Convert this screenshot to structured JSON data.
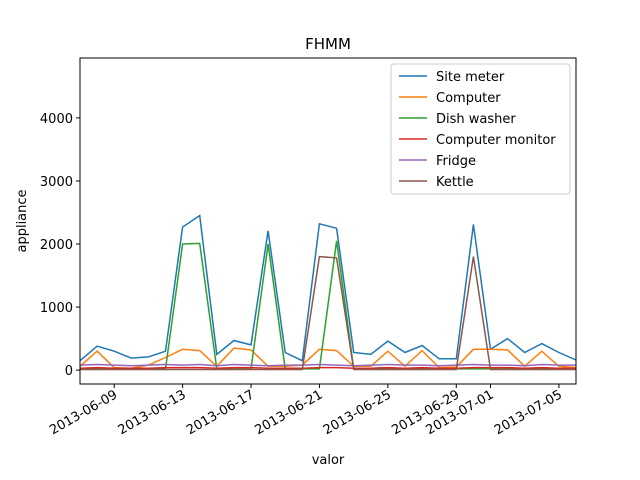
{
  "chart_data": {
    "type": "line",
    "title": "FHMM",
    "xlabel": "valor",
    "ylabel": "appliance",
    "xlim": [
      "2013-06-07",
      "2013-07-06"
    ],
    "ylim": [
      -220,
      4950
    ],
    "x_ticks": [
      "2013-06-09",
      "2013-06-13",
      "2013-06-17",
      "2013-06-21",
      "2013-06-25",
      "2013-06-29",
      "2013-07-01",
      "2013-07-05"
    ],
    "y_ticks": [
      0,
      1000,
      2000,
      3000,
      4000
    ],
    "legend_position": "top-right",
    "x": [
      "2013-06-07",
      "2013-06-08",
      "2013-06-09",
      "2013-06-10",
      "2013-06-11",
      "2013-06-12",
      "2013-06-13",
      "2013-06-14",
      "2013-06-15",
      "2013-06-16",
      "2013-06-17",
      "2013-06-18",
      "2013-06-19",
      "2013-06-20",
      "2013-06-21",
      "2013-06-22",
      "2013-06-23",
      "2013-06-24",
      "2013-06-25",
      "2013-06-26",
      "2013-06-27",
      "2013-06-28",
      "2013-06-29",
      "2013-06-30",
      "2013-07-01",
      "2013-07-02",
      "2013-07-03",
      "2013-07-04",
      "2013-07-05",
      "2013-07-06"
    ],
    "series": [
      {
        "name": "Site meter",
        "color": "#1f77b4",
        "values": [
          150,
          380,
          300,
          190,
          210,
          300,
          2270,
          2450,
          250,
          470,
          400,
          2210,
          280,
          150,
          2320,
          2250,
          280,
          250,
          460,
          280,
          390,
          180,
          180,
          2310,
          330,
          500,
          280,
          420,
          280,
          160
        ]
      },
      {
        "name": "Computer",
        "color": "#ff7f0e",
        "values": [
          60,
          300,
          40,
          30,
          80,
          200,
          330,
          310,
          60,
          350,
          320,
          60,
          60,
          80,
          330,
          310,
          60,
          60,
          300,
          60,
          310,
          40,
          50,
          330,
          330,
          320,
          60,
          300,
          60,
          40
        ]
      },
      {
        "name": "Dish washer",
        "color": "#2ca02c",
        "values": [
          20,
          20,
          20,
          20,
          20,
          20,
          2000,
          2010,
          20,
          20,
          20,
          2000,
          20,
          20,
          20,
          2050,
          20,
          20,
          20,
          20,
          20,
          20,
          20,
          20,
          20,
          20,
          20,
          20,
          20,
          20
        ]
      },
      {
        "name": "Computer monitor",
        "color": "#d62728",
        "values": [
          30,
          40,
          30,
          30,
          30,
          40,
          40,
          40,
          30,
          40,
          40,
          30,
          30,
          30,
          40,
          40,
          30,
          30,
          40,
          30,
          40,
          30,
          30,
          40,
          40,
          40,
          30,
          40,
          30,
          30
        ]
      },
      {
        "name": "Fridge",
        "color": "#9467bd",
        "values": [
          80,
          90,
          80,
          70,
          80,
          90,
          80,
          90,
          70,
          90,
          80,
          70,
          80,
          80,
          90,
          80,
          70,
          80,
          90,
          80,
          80,
          70,
          80,
          90,
          80,
          80,
          70,
          90,
          80,
          80
        ]
      },
      {
        "name": "Kettle",
        "color": "#8c564b",
        "values": [
          10,
          10,
          10,
          10,
          10,
          10,
          10,
          10,
          10,
          10,
          10,
          10,
          10,
          10,
          1800,
          1780,
          10,
          10,
          10,
          10,
          10,
          10,
          10,
          1800,
          10,
          10,
          10,
          10,
          10,
          10
        ]
      }
    ]
  }
}
